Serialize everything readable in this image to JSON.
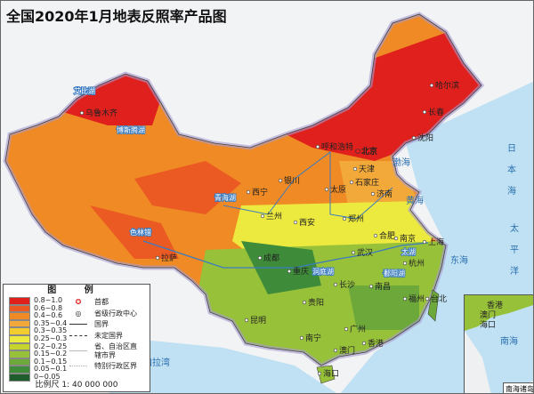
{
  "title": "全国2020年1月地表反照率产品图",
  "legend": {
    "title": "图 例",
    "classes": [
      {
        "label": "0.8~1.0",
        "color": "#e0201c"
      },
      {
        "label": "0.6~0.8",
        "color": "#eb5a23"
      },
      {
        "label": "0.4~0.6",
        "color": "#f08a24"
      },
      {
        "label": "0.35~0.4",
        "color": "#f2a93a"
      },
      {
        "label": "0.3~0.35",
        "color": "#f3cc2e"
      },
      {
        "label": "0.25~0.3",
        "color": "#ece93f"
      },
      {
        "label": "0.2~0.25",
        "color": "#c5d52b"
      },
      {
        "label": "0.15~0.2",
        "color": "#98c13a"
      },
      {
        "label": "0.1~0.15",
        "color": "#6ca83a"
      },
      {
        "label": "0.05~0.1",
        "color": "#3e8c3a"
      },
      {
        "label": "0~0.05",
        "color": "#1f5e2c"
      }
    ],
    "symbols": [
      {
        "label": "首都",
        "icon": "capital-star-icon"
      },
      {
        "label": "省级行政中心",
        "icon": "provincial-capital-icon"
      },
      {
        "label": "国界",
        "icon": "solid-line"
      },
      {
        "label": "未定国界",
        "icon": "dashed-line"
      },
      {
        "label": "省、自治区直辖市界",
        "icon": "thin-line"
      },
      {
        "label": "特别行政区界",
        "icon": "dotted-line"
      }
    ],
    "scale": "比例尺 1: 40 000 000"
  },
  "cities": [
    {
      "name": "北京",
      "capital": true
    },
    {
      "name": "天津"
    },
    {
      "name": "石家庄"
    },
    {
      "name": "太原"
    },
    {
      "name": "济南"
    },
    {
      "name": "郑州"
    },
    {
      "name": "西安"
    },
    {
      "name": "合肥"
    },
    {
      "name": "南京"
    },
    {
      "name": "上海"
    },
    {
      "name": "杭州"
    },
    {
      "name": "武汉"
    },
    {
      "name": "长沙"
    },
    {
      "name": "南昌"
    },
    {
      "name": "重庆"
    },
    {
      "name": "成都"
    },
    {
      "name": "贵阳"
    },
    {
      "name": "昆明"
    },
    {
      "name": "南宁"
    },
    {
      "name": "广州"
    },
    {
      "name": "香港"
    },
    {
      "name": "澳门"
    },
    {
      "name": "海口"
    },
    {
      "name": "福州"
    },
    {
      "name": "台北"
    },
    {
      "name": "兰州"
    },
    {
      "name": "西宁"
    },
    {
      "name": "银川"
    },
    {
      "name": "呼和浩特"
    },
    {
      "name": "沈阳"
    },
    {
      "name": "长春"
    },
    {
      "name": "哈尔滨"
    },
    {
      "name": "乌鲁木齐"
    },
    {
      "name": "拉萨"
    }
  ],
  "lakes": [
    "艾比湖",
    "博斯腾湖",
    "青海湖",
    "色林错",
    "洞庭湖",
    "鄱阳湖",
    "太湖"
  ],
  "seas": [
    "渤海",
    "黄海",
    "东海",
    "日本海",
    "太平洋",
    "孟加拉湾"
  ],
  "inset": {
    "label": "南海诸岛",
    "cities": [
      "香港",
      "澳门",
      "海口"
    ],
    "sea": "南海"
  }
}
